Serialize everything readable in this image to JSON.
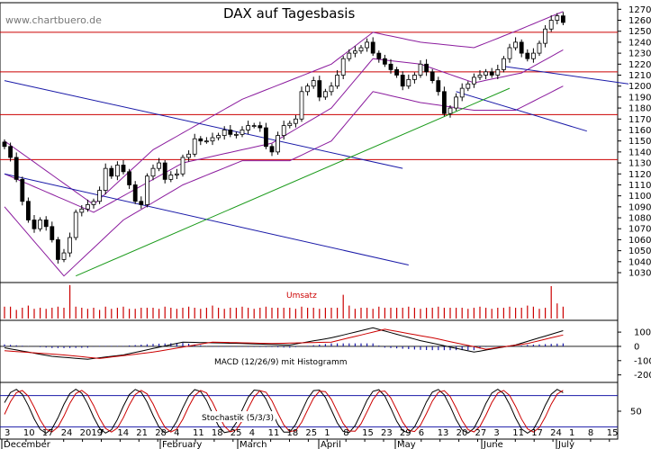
{
  "watermark": "www.chartbuero.de",
  "chart_data": {
    "type": "candlestick",
    "title": "DAX auf Tagesbasis",
    "y_ticks": [
      10300,
      10400,
      10500,
      10600,
      10700,
      10800,
      10900,
      11000,
      11100,
      11200,
      11300,
      11400,
      11500,
      11600,
      11700,
      11800,
      11900,
      12000,
      12100,
      12200,
      12300,
      12400,
      12500,
      12600,
      12700
    ],
    "ylim": [
      10210,
      12760
    ],
    "x_day_labels": [
      "3",
      "10",
      "17",
      "24",
      "2019",
      "7",
      "14",
      "21",
      "28",
      "4",
      "11",
      "18",
      "25",
      "4",
      "11",
      "18",
      "25",
      "1",
      "8",
      "15",
      "23",
      "29",
      "6",
      "13",
      "20",
      "27",
      "3",
      "11",
      "17",
      "24",
      "1",
      "8",
      "15"
    ],
    "x_month_labels": [
      "December",
      "February",
      "March",
      "April",
      "May",
      "June",
      "July"
    ],
    "horizontal_lines": [
      12490,
      12130,
      11740,
      11330
    ],
    "close": [
      11450,
      11350,
      11150,
      10950,
      10780,
      10700,
      10780,
      10720,
      10600,
      10420,
      10480,
      10620,
      10850,
      10880,
      10920,
      10950,
      11050,
      11250,
      11180,
      11280,
      11220,
      11100,
      10950,
      10920,
      11180,
      11250,
      11300,
      11150,
      11190,
      11200,
      11350,
      11380,
      11520,
      11500,
      11500,
      11530,
      11550,
      11600,
      11560,
      11560,
      11600,
      11640,
      11640,
      11620,
      11450,
      11400,
      11550,
      11640,
      11660,
      11700,
      11950,
      12000,
      12050,
      11900,
      11950,
      12000,
      12100,
      12250,
      12300,
      12320,
      12350,
      12400,
      12300,
      12250,
      12200,
      12150,
      12100,
      12000,
      12060,
      12100,
      12200,
      12130,
      12050,
      11950,
      11750,
      11800,
      11900,
      11980,
      12020,
      12080,
      12100,
      12130,
      12100,
      12150,
      12250,
      12350,
      12400,
      12300,
      12250,
      12300,
      12390,
      12520,
      12600,
      12640,
      12580
    ],
    "bollinger_upper_nodes": [
      [
        0,
        11500
      ],
      [
        15,
        10920
      ],
      [
        25,
        11420
      ],
      [
        40,
        11880
      ],
      [
        55,
        12200
      ],
      [
        62,
        12490
      ],
      [
        70,
        12400
      ],
      [
        79,
        12350
      ],
      [
        86,
        12500
      ],
      [
        94,
        12680
      ]
    ],
    "bollinger_mid_nodes": [
      [
        0,
        11200
      ],
      [
        15,
        10850
      ],
      [
        30,
        11300
      ],
      [
        45,
        11480
      ],
      [
        55,
        11800
      ],
      [
        62,
        12250
      ],
      [
        70,
        12200
      ],
      [
        79,
        12030
      ],
      [
        87,
        12120
      ],
      [
        94,
        12330
      ]
    ],
    "bollinger_lower_nodes": [
      [
        0,
        10900
      ],
      [
        10,
        10270
      ],
      [
        20,
        10780
      ],
      [
        30,
        11100
      ],
      [
        40,
        11320
      ],
      [
        48,
        11320
      ],
      [
        55,
        11500
      ],
      [
        62,
        11950
      ],
      [
        70,
        11850
      ],
      [
        79,
        11780
      ],
      [
        86,
        11780
      ],
      [
        94,
        12000
      ]
    ],
    "trendlines": [
      {
        "color": "blue",
        "from": [
          0,
          12050
        ],
        "to": [
          67,
          11250
        ]
      },
      {
        "color": "blue",
        "from": [
          0,
          11200
        ],
        "to": [
          68,
          10370
        ]
      },
      {
        "color": "blue",
        "from": [
          76,
          11950
        ],
        "to": [
          98,
          11590
        ]
      },
      {
        "color": "blue",
        "from": [
          84,
          12180
        ],
        "to": [
          105,
          12020
        ]
      },
      {
        "color": "green",
        "from": [
          12,
          10270
        ],
        "to": [
          85,
          11980
        ]
      }
    ],
    "volume_label": "Umsatz",
    "volume_values": [
      1.1,
      1.1,
      0.8,
      1.0,
      1.2,
      0.9,
      1.0,
      0.9,
      1.0,
      1.1,
      1.0,
      3.1,
      1.1,
      1.0,
      0.9,
      1.0,
      0.8,
      1.1,
      0.9,
      1.0,
      1.1,
      0.9,
      0.9,
      1.0,
      1.0,
      1.0,
      0.9,
      1.1,
      1.0,
      0.9,
      1.0,
      1.1,
      1.0,
      0.9,
      1.0,
      1.2,
      1.0,
      0.9,
      1.0,
      1.0,
      1.1,
      1.0,
      0.9,
      1.0,
      1.1,
      1.0,
      1.0,
      1.0,
      1.0,
      0.9,
      1.1,
      1.0,
      1.0,
      0.9,
      1.0,
      1.0,
      1.0,
      2.2,
      1.2,
      0.9,
      1.0,
      1.0,
      0.9,
      1.1,
      1.0,
      1.0,
      1.0,
      1.0,
      1.1,
      1.0,
      0.9,
      1.0,
      1.0,
      1.1,
      1.0,
      1.0,
      1.0,
      1.0,
      0.9,
      1.0,
      1.1,
      1.0,
      0.9,
      1.0,
      1.0,
      1.1,
      1.0,
      1.0,
      1.2,
      1.1,
      0.9,
      1.0,
      3.0,
      1.4,
      1.1
    ],
    "macd_label": "MACD (12/26/9) mit Histogramm",
    "macd_ticks": [
      100,
      0,
      -100,
      -200
    ],
    "macd_ylim": [
      -240,
      170
    ],
    "macd_nodes": [
      [
        0,
        -10
      ],
      [
        8,
        -70
      ],
      [
        14,
        -90
      ],
      [
        20,
        -60
      ],
      [
        30,
        30
      ],
      [
        40,
        20
      ],
      [
        48,
        10
      ],
      [
        55,
        60
      ],
      [
        62,
        130
      ],
      [
        70,
        40
      ],
      [
        79,
        -40
      ],
      [
        86,
        10
      ],
      [
        94,
        110
      ]
    ],
    "signal_nodes": [
      [
        0,
        -30
      ],
      [
        10,
        -60
      ],
      [
        16,
        -85
      ],
      [
        25,
        -40
      ],
      [
        35,
        30
      ],
      [
        45,
        20
      ],
      [
        55,
        30
      ],
      [
        64,
        120
      ],
      [
        72,
        60
      ],
      [
        81,
        -20
      ],
      [
        88,
        20
      ],
      [
        94,
        80
      ]
    ],
    "stoch_label": "Stochastik (5/3/3)",
    "stoch_ticks": [
      50
    ],
    "stoch_ylim": [
      0,
      100
    ],
    "stoch_levels": [
      80,
      20
    ]
  }
}
